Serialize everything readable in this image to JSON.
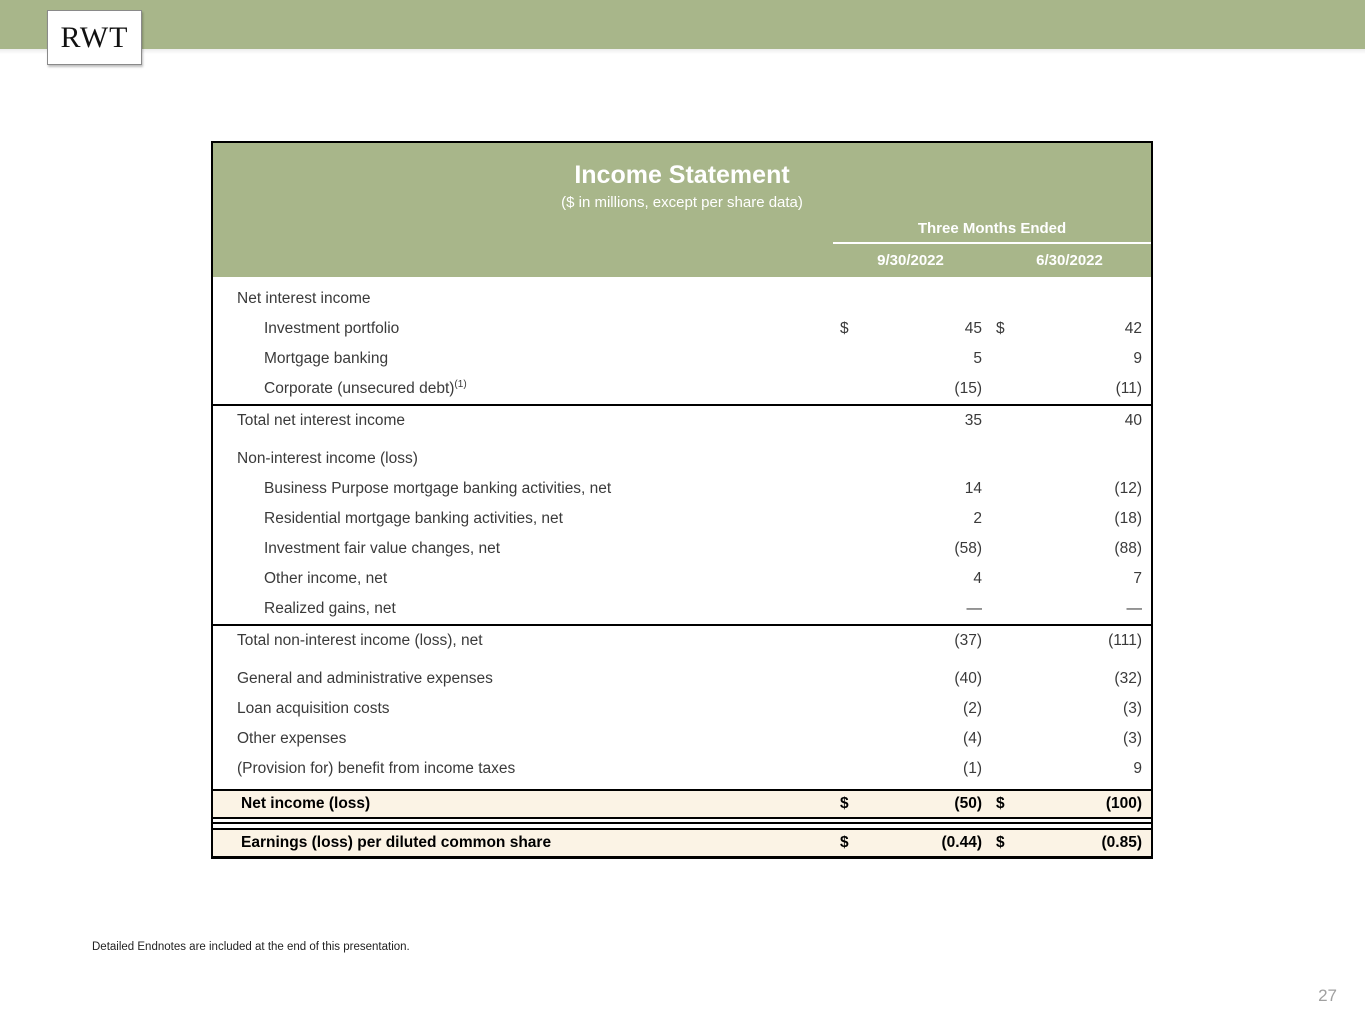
{
  "page": {
    "logo": "RWT",
    "footnote": "Detailed Endnotes are included at the end of this presentation.",
    "page_number": "27"
  },
  "colors": {
    "banner_green": "#a8b68a",
    "header_green": "#a8b68a",
    "highlight_cream": "#fbf3e5",
    "body_text": "#3a3a3a"
  },
  "statement": {
    "title": "Income Statement",
    "subtitle": "($ in millions, except per share data)",
    "period_header": "Three Months Ended",
    "col1": "9/30/2022",
    "col2": "6/30/2022",
    "sections": [
      {
        "rows": [
          {
            "label": "Net interest income",
            "indent": 0,
            "d1": "",
            "v1": "",
            "d2": "",
            "v2": ""
          },
          {
            "label": "Investment portfolio",
            "indent": 1,
            "d1": "$",
            "v1": "45",
            "d2": "$",
            "v2": "42"
          },
          {
            "label": "Mortgage banking",
            "indent": 1,
            "d1": "",
            "v1": "5",
            "d2": "",
            "v2": "9"
          },
          {
            "label": "Corporate (unsecured debt)",
            "sup": "(1)",
            "indent": 1,
            "d1": "",
            "v1": "(15)",
            "d2": "",
            "v2": "(11)"
          }
        ]
      },
      {
        "spacer_after_first": true,
        "rows": [
          {
            "label": "Total net interest income",
            "indent": 0,
            "d1": "",
            "v1": "35",
            "d2": "",
            "v2": "40"
          },
          {
            "label": "Non-interest income (loss)",
            "indent": 0,
            "d1": "",
            "v1": "",
            "d2": "",
            "v2": ""
          },
          {
            "label": "Business Purpose mortgage banking activities, net",
            "indent": 1,
            "d1": "",
            "v1": "14",
            "d2": "",
            "v2": "(12)"
          },
          {
            "label": "Residential mortgage banking activities, net",
            "indent": 1,
            "d1": "",
            "v1": "2",
            "d2": "",
            "v2": "(18)"
          },
          {
            "label": "Investment fair value changes, net",
            "indent": 1,
            "d1": "",
            "v1": "(58)",
            "d2": "",
            "v2": "(88)"
          },
          {
            "label": "Other income, net",
            "indent": 1,
            "d1": "",
            "v1": "4",
            "d2": "",
            "v2": "7"
          },
          {
            "label": "Realized gains, net",
            "indent": 1,
            "d1": "",
            "v1": "—",
            "d2": "",
            "v2": "—"
          }
        ]
      },
      {
        "spacer_after_first": true,
        "rows": [
          {
            "label": "Total non-interest income (loss), net",
            "indent": 0,
            "d1": "",
            "v1": "(37)",
            "d2": "",
            "v2": "(111)"
          },
          {
            "label": "General and administrative expenses",
            "indent": 0,
            "d1": "",
            "v1": "(40)",
            "d2": "",
            "v2": "(32)"
          },
          {
            "label": "Loan acquisition costs",
            "indent": 0,
            "d1": "",
            "v1": "(2)",
            "d2": "",
            "v2": "(3)"
          },
          {
            "label": "Other expenses",
            "indent": 0,
            "d1": "",
            "v1": "(4)",
            "d2": "",
            "v2": "(3)"
          },
          {
            "label": "(Provision for) benefit from income taxes",
            "indent": 0,
            "d1": "",
            "v1": "(1)",
            "d2": "",
            "v2": "9"
          }
        ]
      }
    ],
    "net_income": {
      "label": "Net income (loss)",
      "d1": "$",
      "v1": "(50)",
      "d2": "$",
      "v2": "(100)"
    },
    "eps": {
      "label": "Earnings (loss) per diluted common share",
      "d1": "$",
      "v1": "(0.44)",
      "d2": "$",
      "v2": "(0.85)"
    }
  }
}
